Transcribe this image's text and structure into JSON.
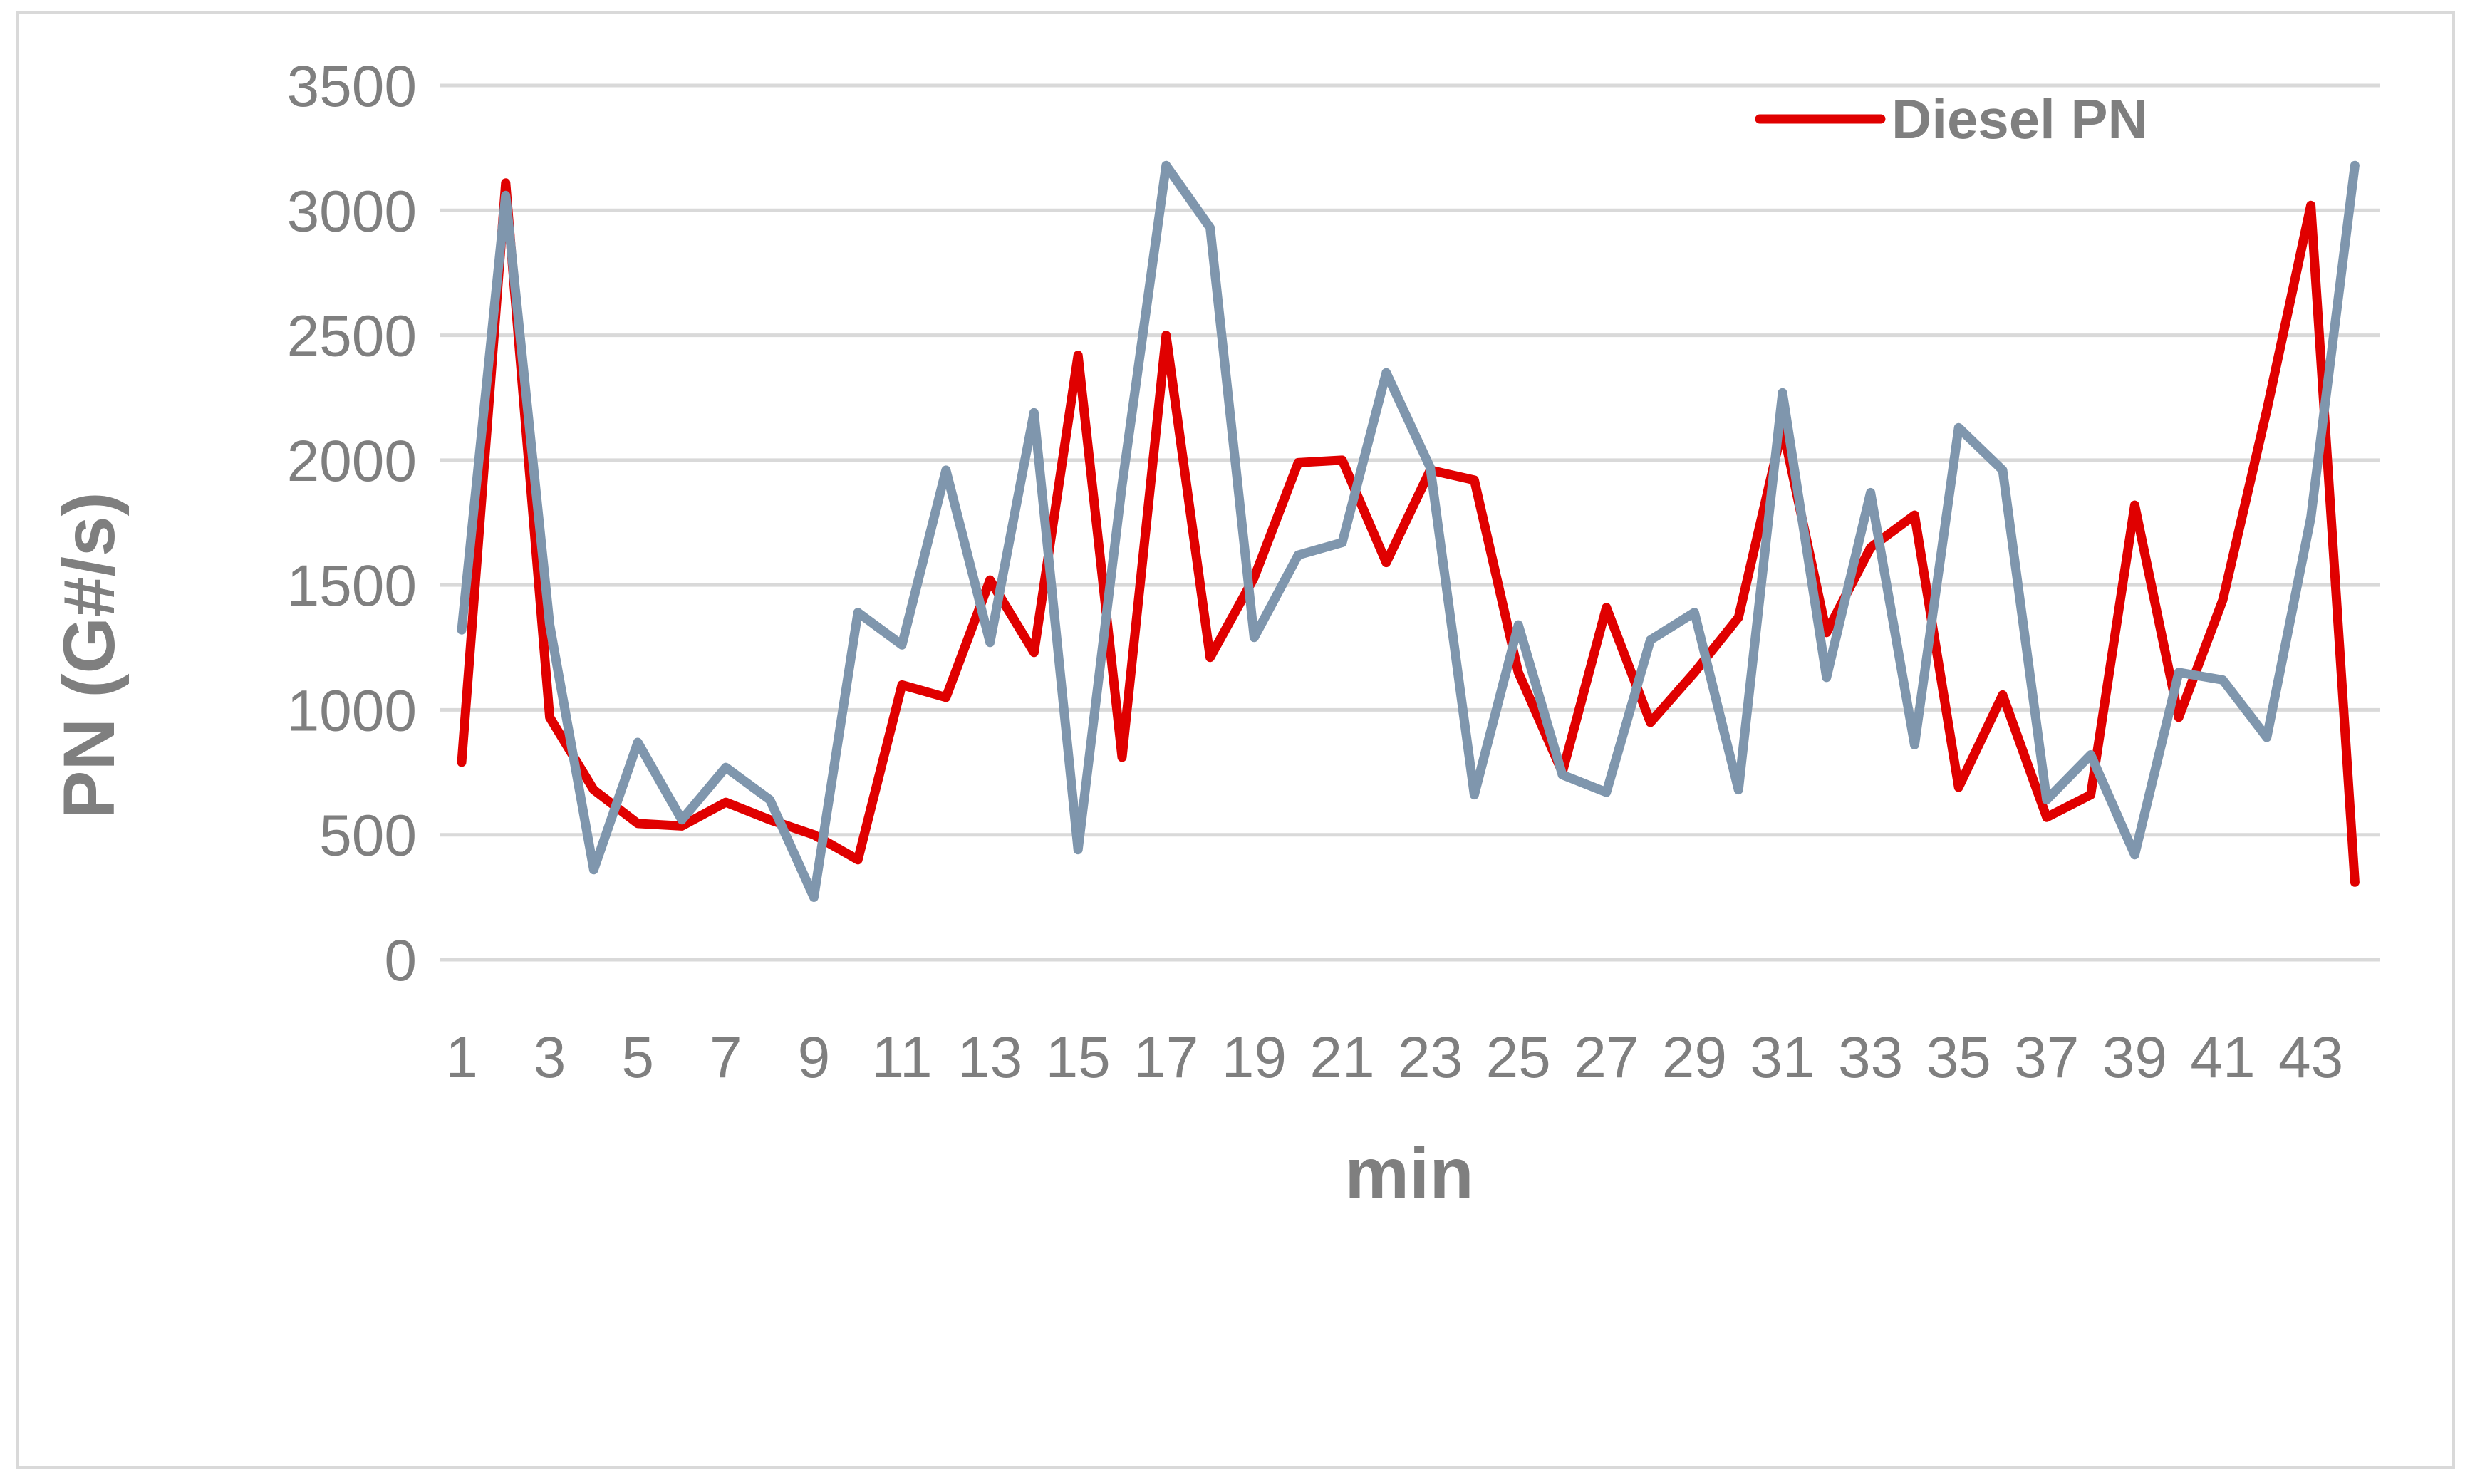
{
  "chart_data": {
    "type": "line",
    "title": "",
    "xlabel": "min",
    "ylabel": "PN (G#/s)",
    "ylim": [
      0,
      3500
    ],
    "yticks": [
      0,
      500,
      1000,
      1500,
      2000,
      2500,
      3000,
      3500
    ],
    "x": [
      1,
      2,
      3,
      4,
      5,
      6,
      7,
      8,
      9,
      10,
      11,
      12,
      13,
      14,
      15,
      16,
      17,
      18,
      19,
      20,
      21,
      22,
      23,
      24,
      25,
      26,
      27,
      28,
      29,
      30,
      31,
      32,
      33,
      34,
      35,
      36,
      37,
      38,
      39,
      40,
      41,
      42,
      43,
      44
    ],
    "xtick_labels": [
      "1",
      "3",
      "5",
      "7",
      "9",
      "11",
      "13",
      "15",
      "17",
      "19",
      "21",
      "23",
      "25",
      "27",
      "29",
      "31",
      "33",
      "35",
      "37",
      "39",
      "41",
      "43"
    ],
    "xtick_values": [
      1,
      3,
      5,
      7,
      9,
      11,
      13,
      15,
      17,
      19,
      21,
      23,
      25,
      27,
      29,
      31,
      33,
      35,
      37,
      39,
      41,
      43
    ],
    "grid": true,
    "legend_position": "top-right",
    "series": [
      {
        "name": "Diesel PN",
        "color": "#e00000",
        "values": [
          790,
          3110,
          970,
          680,
          545,
          535,
          630,
          560,
          500,
          400,
          1100,
          1050,
          1520,
          1230,
          2420,
          810,
          2500,
          1210,
          1530,
          1990,
          2000,
          1590,
          1960,
          1920,
          1150,
          750,
          1410,
          950,
          1150,
          1370,
          2130,
          1310,
          1650,
          1780,
          690,
          1060,
          570,
          660,
          1820,
          970,
          1440,
          2200,
          3020,
          310
        ]
      },
      {
        "name": "",
        "color": "#7f96ad",
        "values": [
          1320,
          3060,
          1340,
          360,
          870,
          560,
          770,
          640,
          250,
          1390,
          1260,
          1960,
          1270,
          2190,
          440,
          1900,
          3180,
          2930,
          1290,
          1620,
          1670,
          2350,
          1970,
          660,
          1340,
          740,
          670,
          1280,
          1390,
          680,
          2270,
          1130,
          1870,
          860,
          2130,
          1960,
          640,
          820,
          420,
          1150,
          1120,
          890,
          1770,
          3180
        ]
      }
    ]
  }
}
